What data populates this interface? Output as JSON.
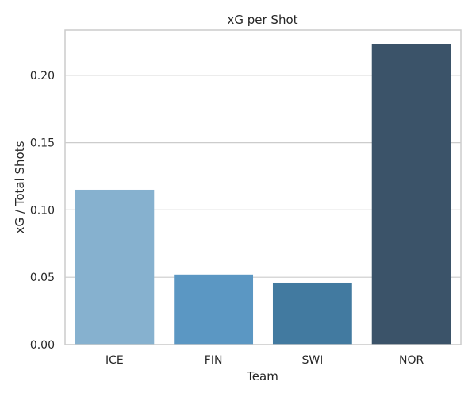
{
  "chart_data": {
    "type": "bar",
    "title": "xG per Shot",
    "xlabel": "Team",
    "ylabel": "xG / Total Shots",
    "categories": [
      "ICE",
      "FIN",
      "SWI",
      "NOR"
    ],
    "values": [
      0.115,
      0.052,
      0.046,
      0.223
    ],
    "colors": [
      "#86b1cf",
      "#5b97c3",
      "#427aa0",
      "#3b5369"
    ],
    "ylim": [
      0,
      0.2335
    ],
    "yticks": [
      0.0,
      0.05,
      0.1,
      0.15,
      0.2
    ],
    "ytick_labels": [
      "0.00",
      "0.05",
      "0.10",
      "0.15",
      "0.20"
    ],
    "grid": "horizontal",
    "style": {
      "grid_color": "#cccccc",
      "spine_color": "#cccccc",
      "text_color": "#262626"
    }
  }
}
